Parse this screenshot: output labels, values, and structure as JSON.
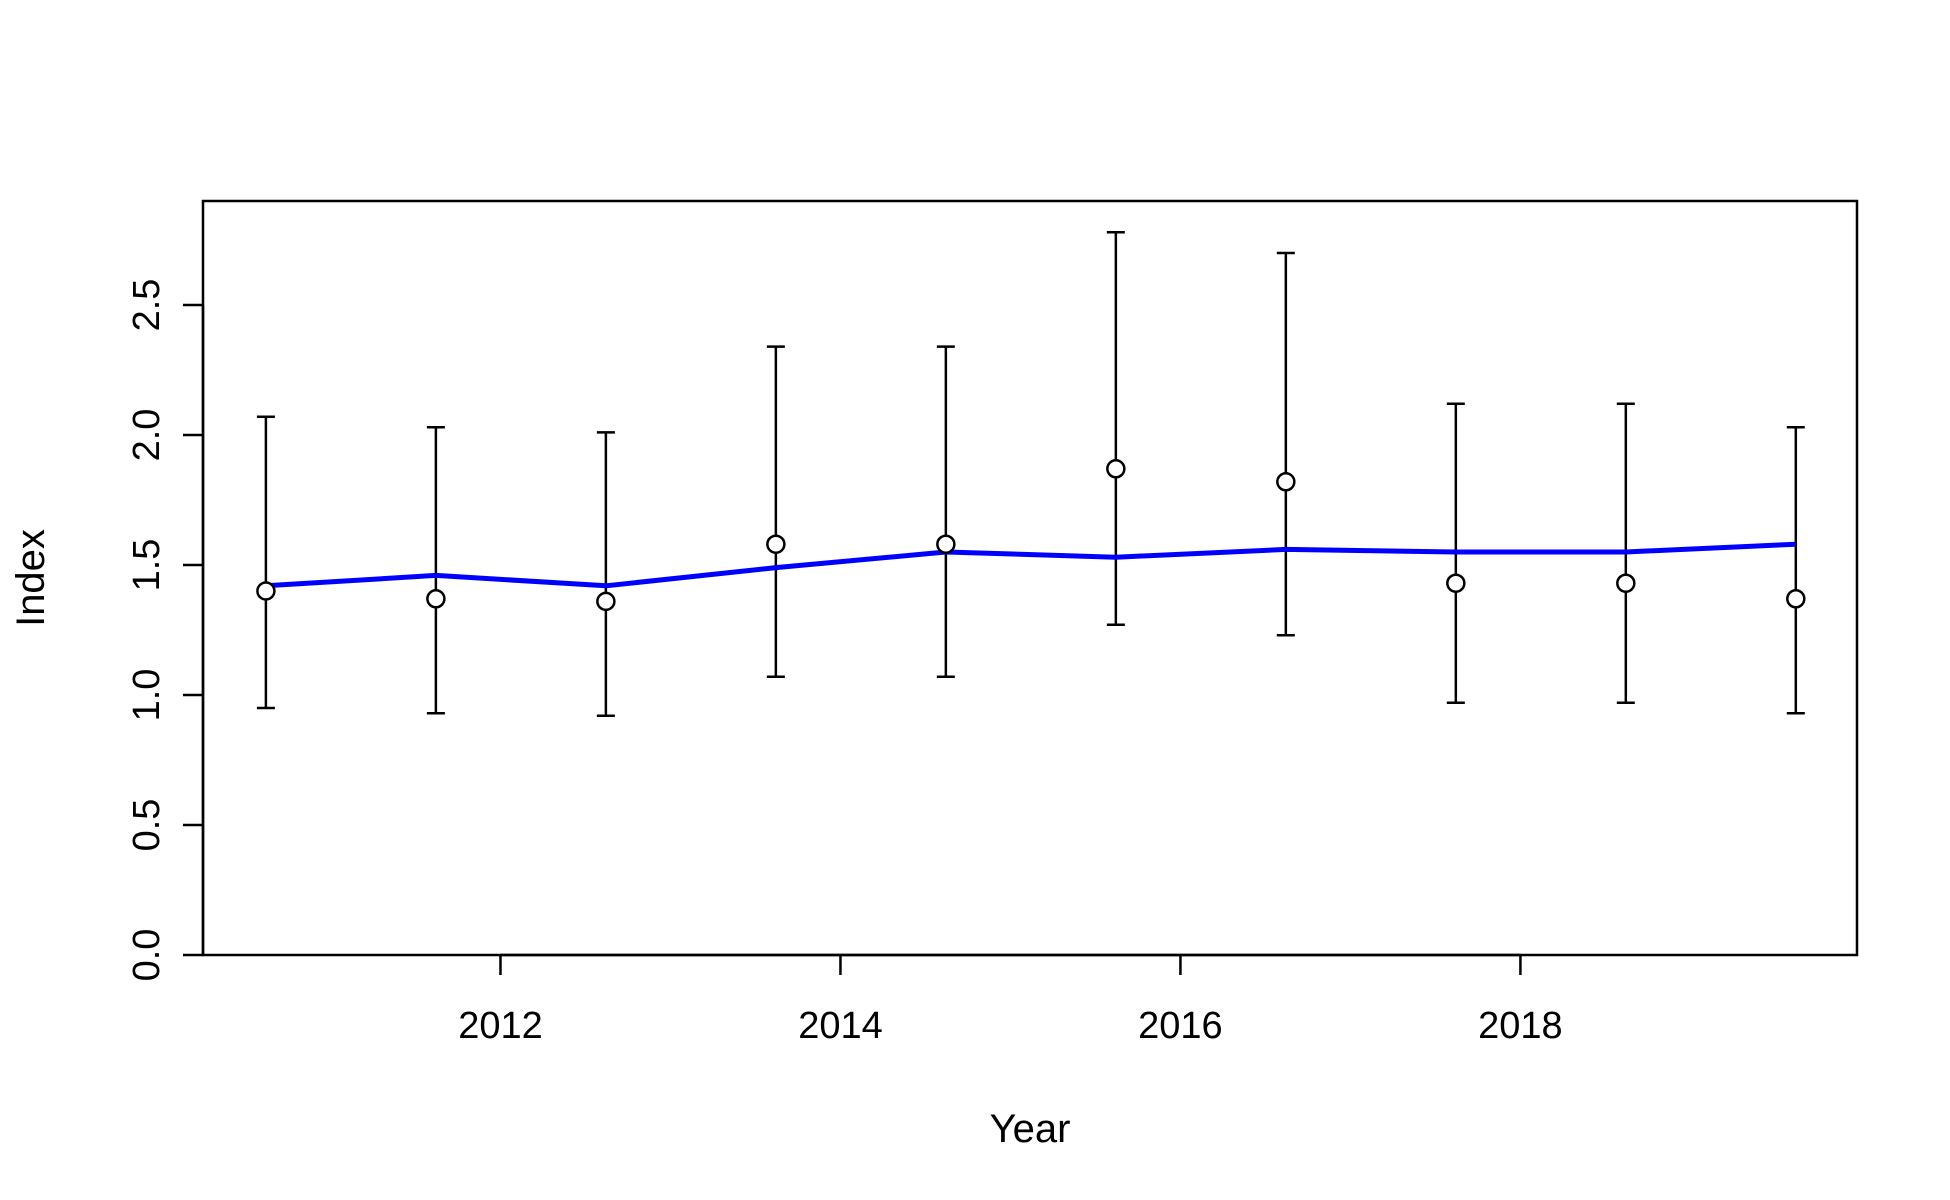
{
  "chart_data": {
    "type": "scatter",
    "title": "",
    "xlabel": "Year",
    "ylabel": "Index",
    "xlim": [
      2010.25,
      2019.98
    ],
    "ylim": [
      0,
      2.9
    ],
    "x_ticks": [
      2012,
      2014,
      2016,
      2018
    ],
    "y_ticks": [
      0.0,
      0.5,
      1.0,
      1.5,
      2.0,
      2.5
    ],
    "grid": false,
    "colors": {
      "points": "#000000",
      "error_bars": "#000000",
      "fit": "#0000ff"
    },
    "series": [
      {
        "type": "scatter",
        "x": [
          2010.62,
          2011.62,
          2012.62,
          2013.62,
          2014.62,
          2015.62,
          2016.62,
          2017.62,
          2018.62,
          2019.62
        ],
        "y": [
          1.4,
          1.37,
          1.36,
          1.58,
          1.58,
          1.87,
          1.82,
          1.43,
          1.43,
          1.37
        ],
        "lower": [
          0.95,
          0.93,
          0.92,
          1.07,
          1.07,
          1.27,
          1.23,
          0.97,
          0.97,
          0.93
        ],
        "upper": [
          2.07,
          2.03,
          2.01,
          2.34,
          2.34,
          2.78,
          2.7,
          2.12,
          2.12,
          2.03
        ]
      },
      {
        "type": "line",
        "x": [
          2010.62,
          2011.62,
          2012.62,
          2013.62,
          2014.62,
          2015.62,
          2016.62,
          2017.62,
          2018.62,
          2019.62
        ],
        "y": [
          1.42,
          1.46,
          1.42,
          1.49,
          1.55,
          1.53,
          1.56,
          1.55,
          1.55,
          1.58
        ]
      }
    ]
  }
}
